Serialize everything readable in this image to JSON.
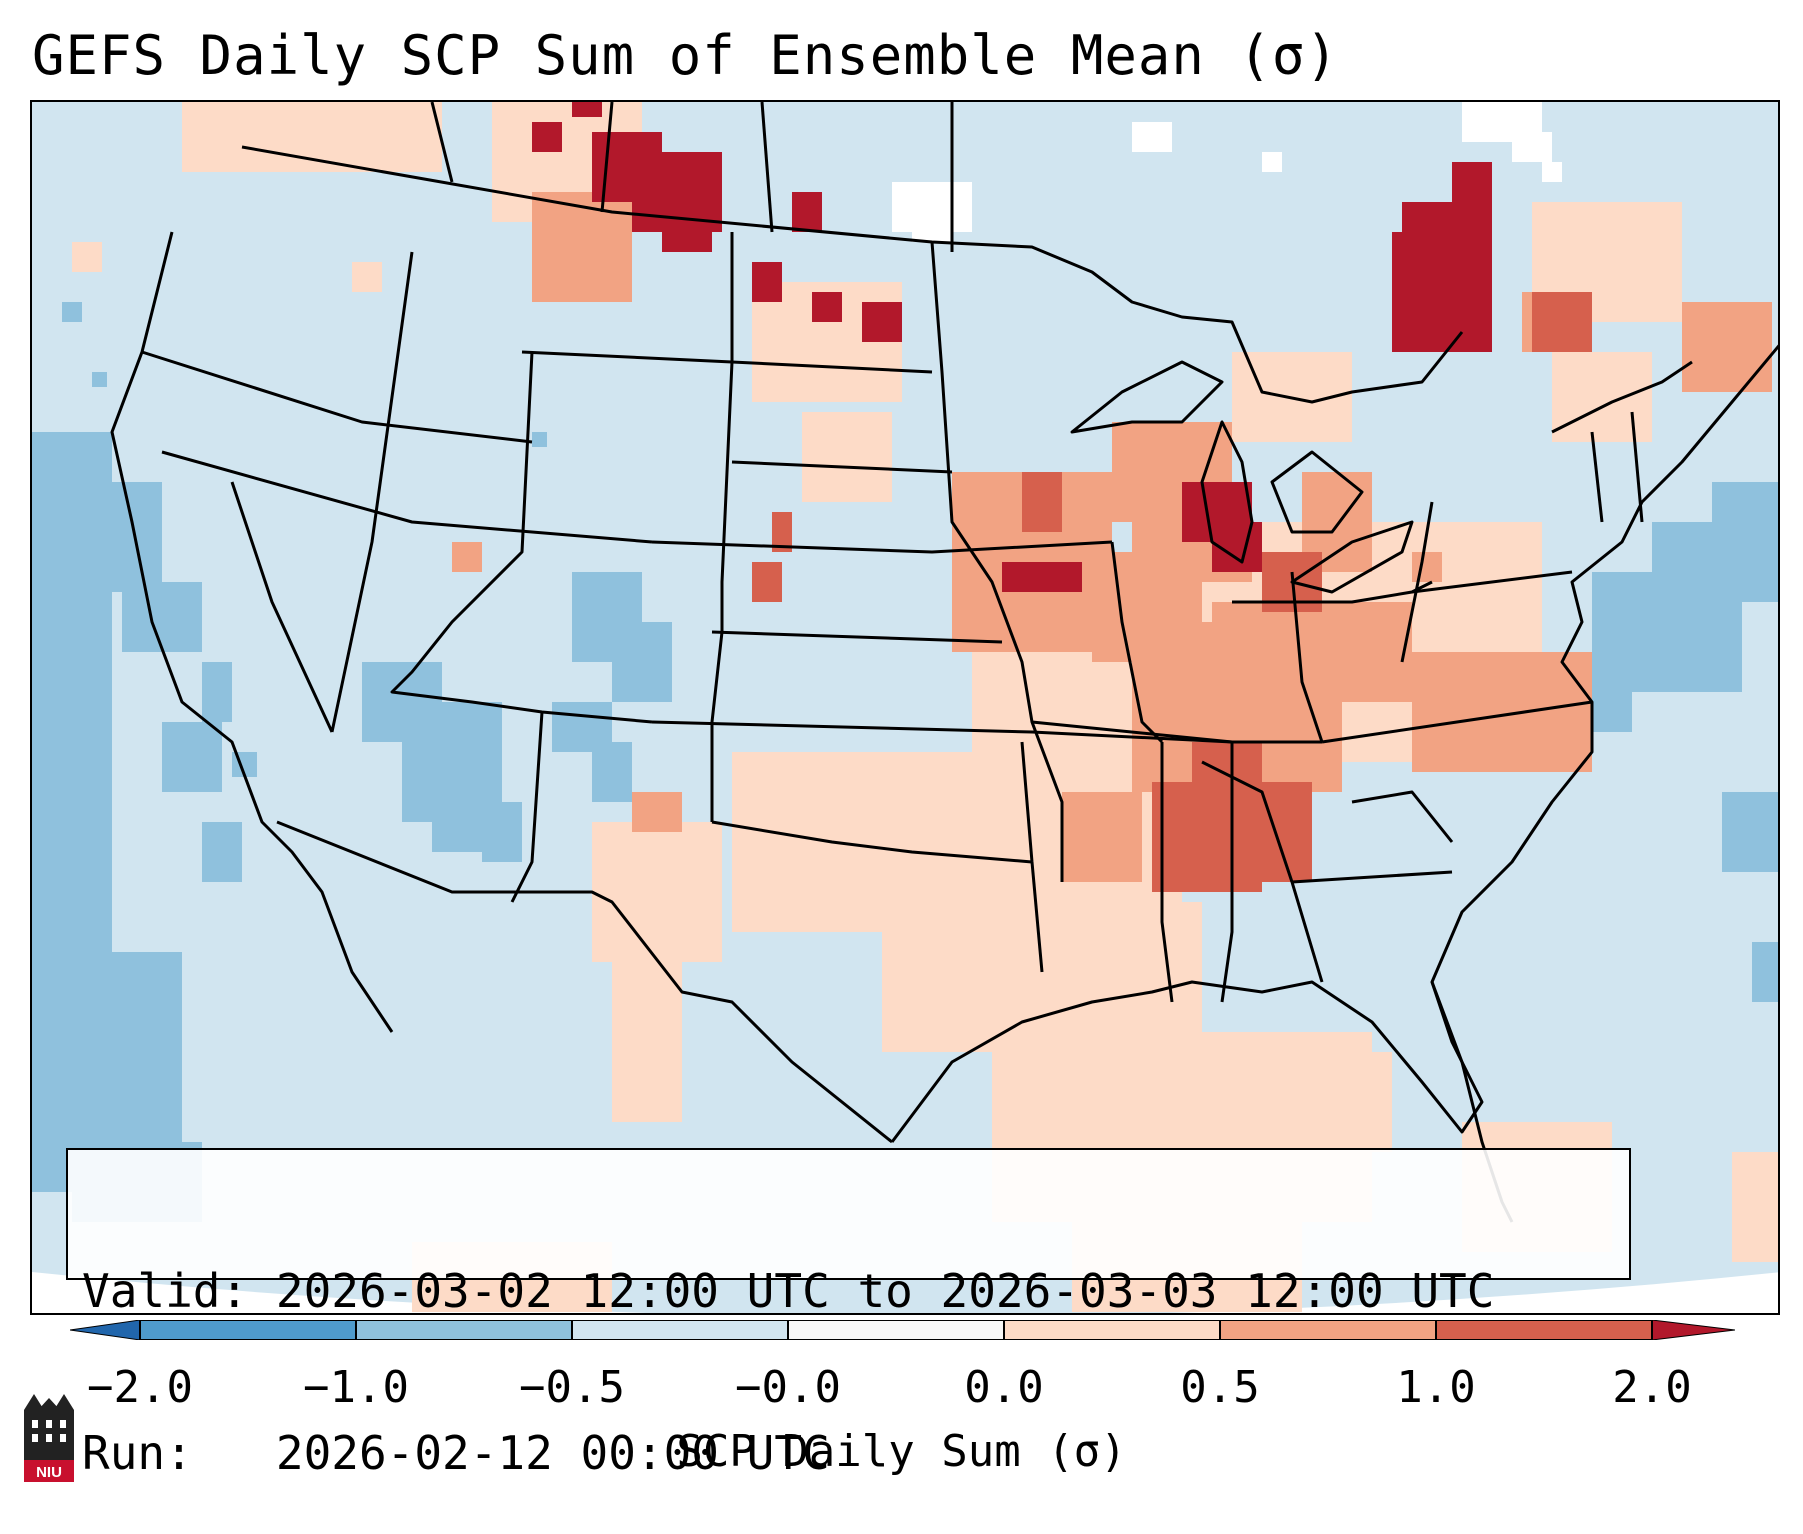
{
  "title": "GEFS Daily SCP Sum of Ensemble Mean (σ)",
  "info": {
    "valid_label": "Valid:",
    "valid_text": "2026-03-02 12:00 UTC to 2026-03-03 12:00 UTC",
    "run_label": "Run:",
    "run_text": "2026-02-12 00:00 UTC"
  },
  "colorbar": {
    "label": "SCP Daily Sum (σ)",
    "ticks": [
      "−2.0",
      "−1.0",
      "−0.5",
      "−0.0",
      "0.0",
      "0.5",
      "1.0",
      "2.0"
    ],
    "colors": {
      "below_-1": "#4f9bcc",
      "-1_to_-0.5": "#8fc1dd",
      "-0.5_to_0": "#d1e5f0",
      "0_gap": "#f7f7f7",
      "0_to_0.5": "#fddbc7",
      "0.5_to_1": "#f2a383",
      "1_to_2": "#d6604d",
      "above_2": "#b2182b"
    }
  },
  "logo": {
    "text": "NIU",
    "icon": "niu-logo-icon"
  },
  "map": {
    "regions": [
      {
        "name": "Upper Midwest / Iowa-Illinois",
        "level": "0.5_to_1"
      },
      {
        "name": "Lake Michigan / N Indiana",
        "level": "above_2"
      },
      {
        "name": "Mississippi / Alabama",
        "level": "1_to_2"
      },
      {
        "name": "Ohio Valley",
        "level": "0.5_to_1"
      },
      {
        "name": "Southern Plains / Gulf",
        "level": "0_to_0.5"
      },
      {
        "name": "Montana / Saskatchewan",
        "level": "above_2"
      },
      {
        "name": "Quebec",
        "level": "above_2"
      },
      {
        "name": "Pacific Ocean",
        "level": "-1_to_-0.5"
      },
      {
        "name": "Great Basin",
        "level": "-1_to_-0.5"
      },
      {
        "name": "Western Atlantic",
        "level": "-1_to_-0.5"
      }
    ]
  }
}
